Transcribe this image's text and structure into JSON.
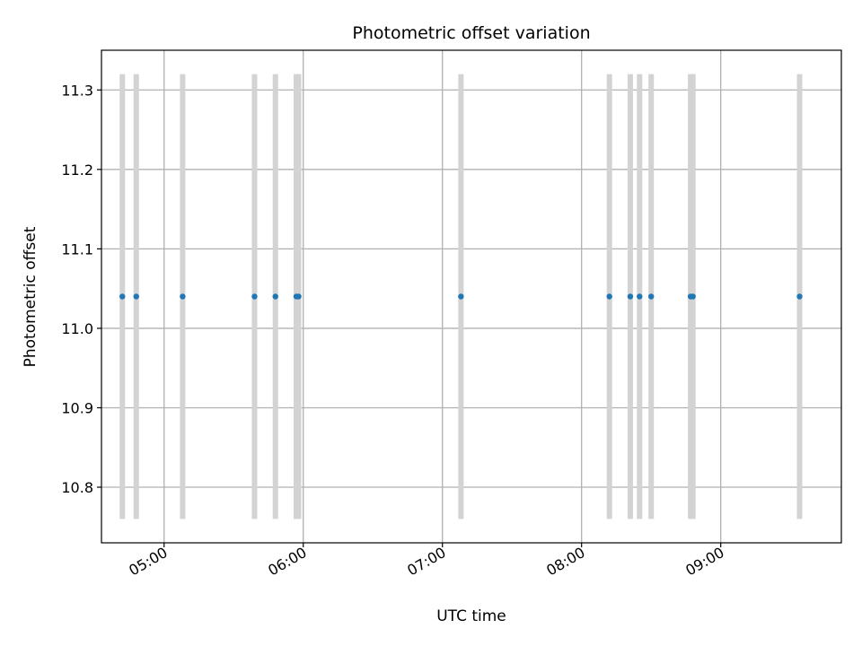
{
  "chart_data": {
    "type": "scatter",
    "title": "Photometric offset variation",
    "xlabel": "UTC time",
    "ylabel": "Photometric offset",
    "x_ticks": [
      "05:00",
      "06:00",
      "07:00",
      "08:00",
      "09:00"
    ],
    "y_ticks": [
      "10.8",
      "10.9",
      "11.0",
      "11.1",
      "11.2",
      "11.3"
    ],
    "xlim": [
      "04:33",
      "09:52"
    ],
    "ylim": [
      10.73,
      11.35
    ],
    "grid": true,
    "colors": {
      "points": "#1f77b4",
      "bands": "#d3d3d3",
      "grid": "#b0b0b0"
    },
    "band_range": [
      10.76,
      11.32
    ],
    "series": [
      {
        "x": [
          "04:42",
          "04:48",
          "05:08",
          "05:39",
          "05:48",
          "05:57",
          "05:58",
          "07:08",
          "08:12",
          "08:21",
          "08:25",
          "08:30",
          "08:47",
          "08:48",
          "09:34"
        ],
        "y": [
          11.04,
          11.04,
          11.04,
          11.04,
          11.04,
          11.04,
          11.04,
          11.04,
          11.04,
          11.04,
          11.04,
          11.04,
          11.04,
          11.04,
          11.04
        ]
      }
    ]
  }
}
